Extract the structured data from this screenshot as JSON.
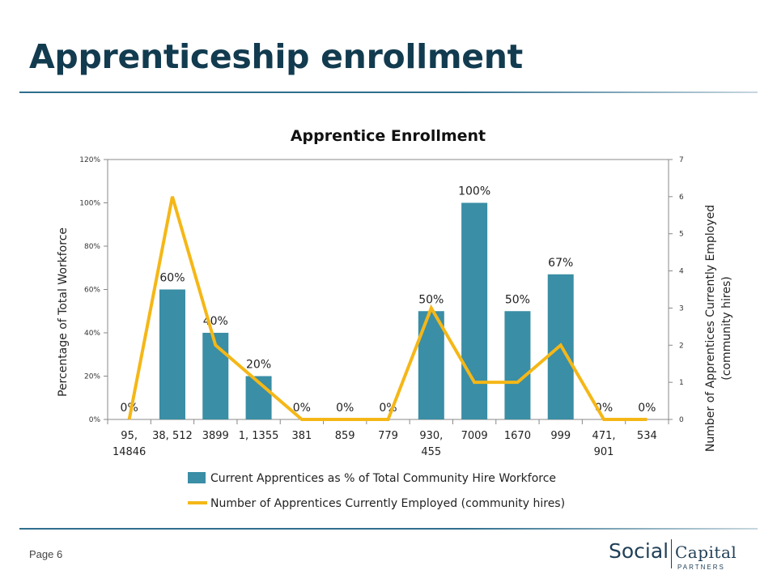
{
  "slide": {
    "title": "Apprenticeship enrollment",
    "page_label": "Page 6"
  },
  "logo": {
    "social": "Social",
    "capital": "Capital",
    "partners": "PARTNERS"
  },
  "chart_data": {
    "type": "bar",
    "title": "Apprentice Enrollment",
    "ylabel": "Percentage of Total Workforce",
    "y2label": "Number of Apprentices Currently Employed (community hires)",
    "ylim": [
      0,
      120
    ],
    "y2lim": [
      0,
      7
    ],
    "yticks": [
      "0%",
      "20%",
      "40%",
      "60%",
      "80%",
      "100%",
      "120%"
    ],
    "y2ticks": [
      "0",
      "1",
      "2",
      "3",
      "4",
      "5",
      "6",
      "7"
    ],
    "categories": [
      [
        "95,",
        "14846"
      ],
      [
        "38, 512"
      ],
      [
        "3899"
      ],
      [
        "1, 1355"
      ],
      [
        "381"
      ],
      [
        "859"
      ],
      [
        "779"
      ],
      [
        "930,",
        "455"
      ],
      [
        "7009"
      ],
      [
        "1670"
      ],
      [
        "999"
      ],
      [
        "471,",
        "901"
      ],
      [
        "534"
      ]
    ],
    "series": [
      {
        "name": "Current Apprentices as % of Total Community Hire Workforce",
        "kind": "bar",
        "axis": "left",
        "color": "#3a8ea5",
        "values": [
          0,
          60,
          40,
          20,
          0,
          0,
          0,
          50,
          100,
          50,
          67,
          0,
          0
        ],
        "labels": [
          "0%",
          "60%",
          "40%",
          "20%",
          "0%",
          "0%",
          "0%",
          "50%",
          "100%",
          "50%",
          "67%",
          "0%",
          "0%"
        ]
      },
      {
        "name": "Number of Apprentices Currently Employed (community hires)",
        "kind": "line",
        "axis": "right",
        "color": "#f5b717",
        "values": [
          0,
          6,
          2,
          1,
          0,
          0,
          0,
          3,
          1,
          1,
          2,
          0,
          0
        ]
      }
    ],
    "grid": false,
    "legend": "bottom"
  }
}
